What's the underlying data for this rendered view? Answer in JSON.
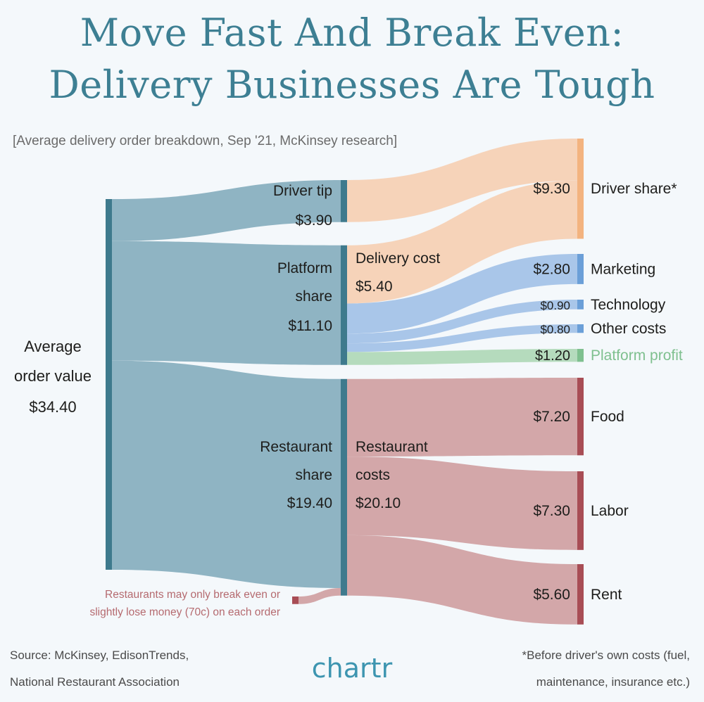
{
  "header": {
    "title_line1": "Move Fast And Break Even:",
    "title_line2": "Delivery Businesses Are Tough",
    "subtitle": "[Average delivery order breakdown, Sep '21, McKinsey research]"
  },
  "footer": {
    "source_line1": "Source: McKinsey, EdisonTrends,",
    "source_line2": "National Restaurant Association",
    "brand": "chartr",
    "footnote_line1": "*Before driver's own costs (fuel,",
    "footnote_line2": "maintenance, insurance etc.)"
  },
  "chart_data": {
    "type": "sankey",
    "currency": "$",
    "colors": {
      "root": "#3e7a8d",
      "root_link": "#8fb4c3",
      "driver": "#f3b37f",
      "driver_link": "#f6d3b9",
      "platform": "#6b9fd8",
      "platform_link": "#a9c6e9",
      "profit": "#7fc08f",
      "profit_link": "#b5dbbd",
      "restaurant": "#a84d55",
      "restaurant_link": "#d3a7a9",
      "annotation": "#b56a6f"
    },
    "nodes": [
      {
        "id": "average_order_value",
        "label_lines": [
          "Average",
          "order value"
        ],
        "value_label": "$34.40",
        "value": 34.4
      },
      {
        "id": "driver_tip",
        "label_lines": [
          "Driver tip"
        ],
        "value_label": "$3.90",
        "value": 3.9
      },
      {
        "id": "platform_share",
        "label_lines": [
          "Platform",
          "share"
        ],
        "value_label": "$11.10",
        "value": 11.1
      },
      {
        "id": "restaurant_share",
        "label_lines": [
          "Restaurant",
          "share"
        ],
        "value_label": "$19.40",
        "value": 19.4
      },
      {
        "id": "delivery_cost",
        "label_lines": [
          "Delivery cost"
        ],
        "value_label": "$5.40",
        "value": 5.4
      },
      {
        "id": "restaurant_costs",
        "label_lines": [
          "Restaurant",
          "costs"
        ],
        "value_label": "$20.10",
        "value": 20.1
      },
      {
        "id": "driver_share",
        "label": "Driver share*",
        "value_label": "$9.30",
        "value": 9.3
      },
      {
        "id": "marketing",
        "label": "Marketing",
        "value_label": "$2.80",
        "value": 2.8
      },
      {
        "id": "technology",
        "label": "Technology",
        "value_label": "$0.90",
        "value": 0.9
      },
      {
        "id": "other_costs",
        "label": "Other costs",
        "value_label": "$0.80",
        "value": 0.8
      },
      {
        "id": "platform_profit",
        "label": "Platform profit",
        "value_label": "$1.20",
        "value": 1.2
      },
      {
        "id": "food",
        "label": "Food",
        "value_label": "$7.20",
        "value": 7.2
      },
      {
        "id": "labor",
        "label": "Labor",
        "value_label": "$7.30",
        "value": 7.3
      },
      {
        "id": "rent",
        "label": "Rent",
        "value_label": "$5.60",
        "value": 5.6
      }
    ],
    "links": [
      {
        "source": "average_order_value",
        "target": "driver_tip",
        "value": 3.9
      },
      {
        "source": "average_order_value",
        "target": "platform_share",
        "value": 11.1
      },
      {
        "source": "average_order_value",
        "target": "restaurant_share",
        "value": 19.4
      },
      {
        "source": "driver_tip",
        "target": "driver_share",
        "value": 3.9
      },
      {
        "source": "platform_share",
        "target": "driver_share",
        "value": 5.4
      },
      {
        "source": "platform_share",
        "target": "marketing",
        "value": 2.8
      },
      {
        "source": "platform_share",
        "target": "technology",
        "value": 0.9
      },
      {
        "source": "platform_share",
        "target": "other_costs",
        "value": 0.8
      },
      {
        "source": "platform_share",
        "target": "platform_profit",
        "value": 1.2
      },
      {
        "source": "restaurant_share",
        "target": "food",
        "value": 7.2
      },
      {
        "source": "restaurant_share",
        "target": "labor",
        "value": 7.3
      },
      {
        "source": "restaurant_share",
        "target": "rent",
        "value": 5.6
      },
      {
        "source": "restaurant_loss",
        "target": "restaurant_costs",
        "value": 0.7
      }
    ],
    "annotation": {
      "lines": [
        "Restaurants may only break even or",
        "slightly lose money (70c) on each order"
      ]
    }
  }
}
